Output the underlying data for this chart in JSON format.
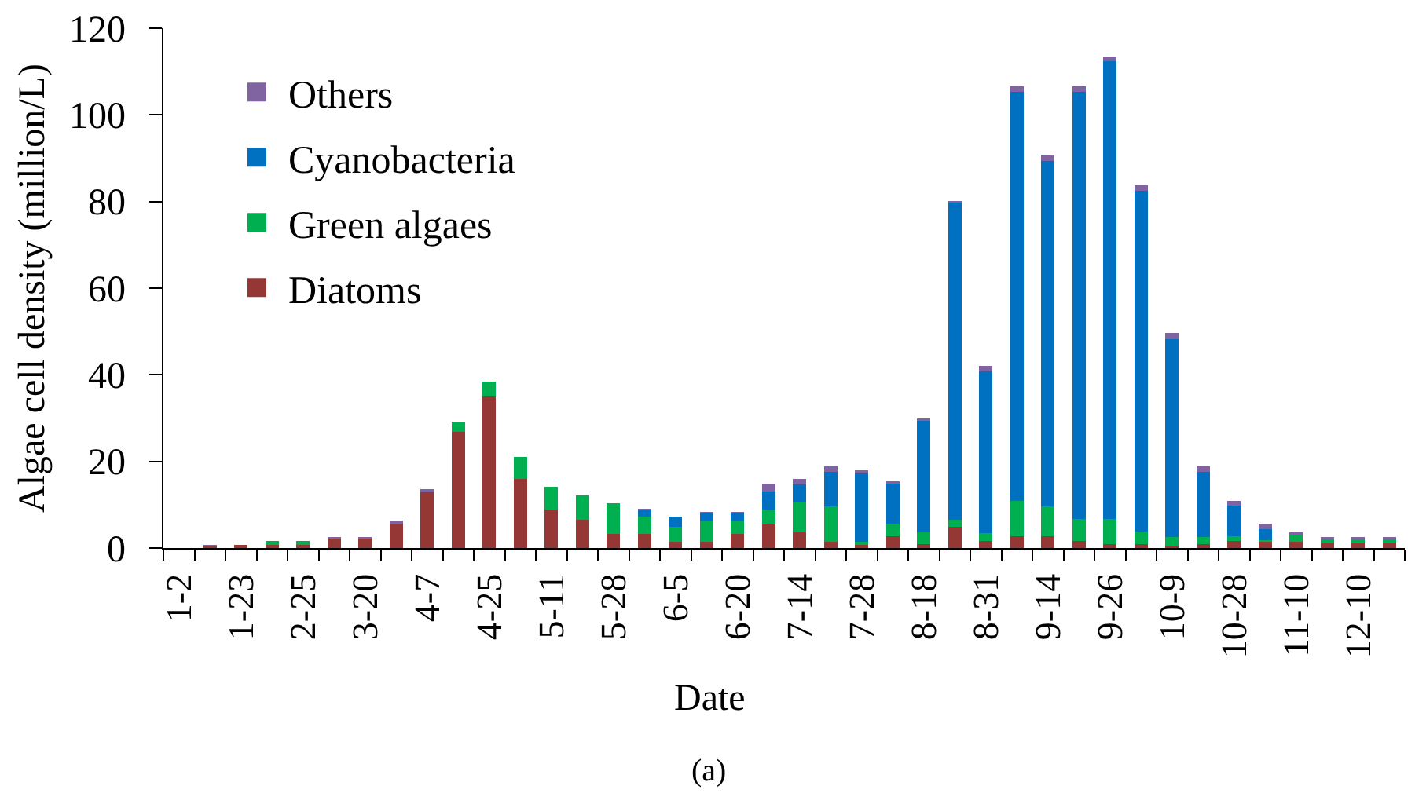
{
  "chart_data": {
    "type": "bar",
    "stacked": true,
    "xlabel": "Date",
    "ylabel": "Algae cell density (million/L)",
    "annotations": [
      "(a)"
    ],
    "categories": [
      "1-2",
      null,
      "1-23",
      null,
      "2-25",
      null,
      "3-20",
      null,
      "4-7",
      null,
      "4-25",
      null,
      "5-11",
      null,
      "5-28",
      null,
      "6-5",
      null,
      "6-20",
      null,
      "7-14",
      null,
      "7-28",
      null,
      "8-18",
      null,
      "8-31",
      null,
      "9-14",
      null,
      "9-26",
      null,
      "10-9",
      null,
      "10-28",
      null,
      "11-10",
      null,
      "12-10",
      null
    ],
    "series": [
      {
        "name": "Diatoms",
        "color": "#953735",
        "values": [
          null,
          0.3,
          0.8,
          0.8,
          0.8,
          2.2,
          2.2,
          5.7,
          12.9,
          26.9,
          35.0,
          16.0,
          8.9,
          6.6,
          3.3,
          3.3,
          1.4,
          1.4,
          3.3,
          5.5,
          3.7,
          1.5,
          0.8,
          2.7,
          0.9,
          4.9,
          1.6,
          2.8,
          2.8,
          1.6,
          0.9,
          0.9,
          0.3,
          0.9,
          1.6,
          1.4,
          1.5,
          1.2,
          1.2,
          1.2
        ]
      },
      {
        "name": "Green algaes",
        "color": "#00b050",
        "values": [
          null,
          null,
          null,
          0.8,
          0.8,
          null,
          null,
          null,
          null,
          2.3,
          3.4,
          5.1,
          5.3,
          5.5,
          7.0,
          4.0,
          3.5,
          4.7,
          2.8,
          3.3,
          6.9,
          8.1,
          0.6,
          2.8,
          2.8,
          1.7,
          1.8,
          8.1,
          6.8,
          5.1,
          5.8,
          2.9,
          2.3,
          1.7,
          1.1,
          0.5,
          1.5,
          0.8,
          0.8,
          0.8
        ]
      },
      {
        "name": "Cyanobacteria",
        "color": "#0070c0",
        "values": [
          null,
          null,
          null,
          null,
          null,
          null,
          null,
          null,
          null,
          null,
          null,
          null,
          null,
          null,
          null,
          1.4,
          2.4,
          1.8,
          2.1,
          4.2,
          4.1,
          8.0,
          15.9,
          9.3,
          25.6,
          73.1,
          37.4,
          94.4,
          79.7,
          98.6,
          105.6,
          78.6,
          45.7,
          15.0,
          7.0,
          2.5,
          null,
          null,
          null,
          null
        ]
      },
      {
        "name": "Others",
        "color": "#8064a2",
        "values": [
          null,
          0.4,
          null,
          null,
          null,
          0.4,
          0.4,
          0.6,
          0.7,
          null,
          null,
          null,
          null,
          null,
          null,
          0.4,
          null,
          0.5,
          0.2,
          1.8,
          1.3,
          1.2,
          0.6,
          0.6,
          0.6,
          0.4,
          1.2,
          1.3,
          1.6,
          1.3,
          1.2,
          1.3,
          1.3,
          1.2,
          1.2,
          1.3,
          0.7,
          0.6,
          0.6,
          0.6
        ]
      }
    ],
    "ylim": [
      0,
      120
    ],
    "yticks": [
      0,
      20,
      40,
      60,
      80,
      100,
      120
    ],
    "legend": "top left"
  }
}
